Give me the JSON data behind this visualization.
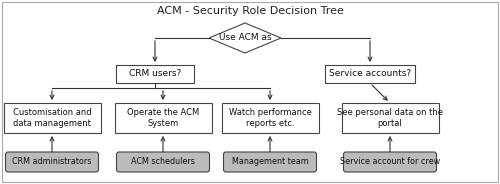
{
  "title": "ACM - Security Role Decision Tree",
  "bg": "#ffffff",
  "border_color": "#aaaaaa",
  "box_edge": "#444444",
  "box_fill": "#ffffff",
  "pill_fill": "#bbbbbb",
  "arrow_color": "#333333",
  "diamond_text": "Use ACM as",
  "rect1_text": "CRM users?",
  "rect2_text": "Service accounts?",
  "box1_text": "Customisation and\ndata management",
  "box2_text": "Operate the ACM\nSystem",
  "box3_text": "Watch performance\nreports etc.",
  "box4_text": "See personal data on the\nportal",
  "pill1_text": "CRM administrators",
  "pill2_text": "ACM schedulers",
  "pill3_text": "Management team",
  "pill4_text": "Service account for crew",
  "title_fontsize": 8.0,
  "label_fontsize": 6.2,
  "pill_fontsize": 6.0
}
